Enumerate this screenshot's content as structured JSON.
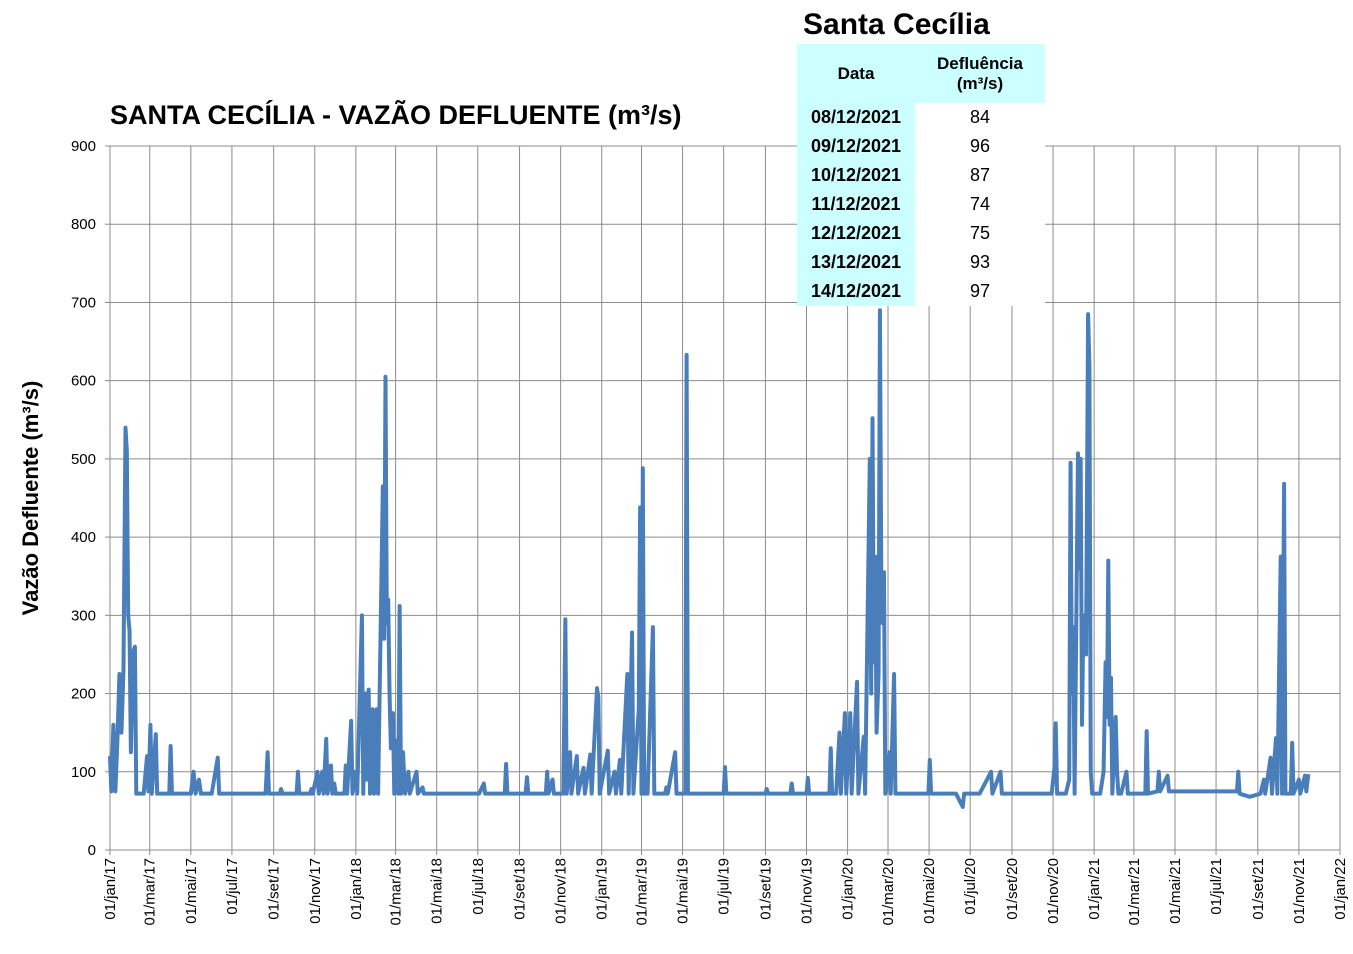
{
  "chart_data": {
    "type": "line",
    "title": "SANTA CECÍLIA - VAZÃO DEFLUENTE (m³/s)",
    "y_label": "Vazão Defluente (m³/s)",
    "color": "#4a7ebb",
    "grid": true,
    "xlim": [
      "2017-01-01",
      "2022-01-01"
    ],
    "ylim": [
      0,
      900
    ],
    "yticks": [
      0,
      100,
      200,
      300,
      400,
      500,
      600,
      700,
      800,
      900
    ],
    "xticks": [
      {
        "value": "2017-01-01",
        "label": "01/jan/17"
      },
      {
        "value": "2017-03-01",
        "label": "01/mar/17"
      },
      {
        "value": "2017-05-01",
        "label": "01/mai/17"
      },
      {
        "value": "2017-07-01",
        "label": "01/jul/17"
      },
      {
        "value": "2017-09-01",
        "label": "01/set/17"
      },
      {
        "value": "2017-11-01",
        "label": "01/nov/17"
      },
      {
        "value": "2018-01-01",
        "label": "01/jan/18"
      },
      {
        "value": "2018-03-01",
        "label": "01/mar/18"
      },
      {
        "value": "2018-05-01",
        "label": "01/mai/18"
      },
      {
        "value": "2018-07-01",
        "label": "01/jul/18"
      },
      {
        "value": "2018-09-01",
        "label": "01/set/18"
      },
      {
        "value": "2018-11-01",
        "label": "01/nov/18"
      },
      {
        "value": "2019-01-01",
        "label": "01/jan/19"
      },
      {
        "value": "2019-03-01",
        "label": "01/mar/19"
      },
      {
        "value": "2019-05-01",
        "label": "01/mai/19"
      },
      {
        "value": "2019-07-01",
        "label": "01/jul/19"
      },
      {
        "value": "2019-09-01",
        "label": "01/set/19"
      },
      {
        "value": "2019-11-01",
        "label": "01/nov/19"
      },
      {
        "value": "2020-01-01",
        "label": "01/jan/20"
      },
      {
        "value": "2020-03-01",
        "label": "01/mar/20"
      },
      {
        "value": "2020-05-01",
        "label": "01/mai/20"
      },
      {
        "value": "2020-07-01",
        "label": "01/jul/20"
      },
      {
        "value": "2020-09-01",
        "label": "01/set/20"
      },
      {
        "value": "2020-11-01",
        "label": "01/nov/20"
      },
      {
        "value": "2021-01-01",
        "label": "01/jan/21"
      },
      {
        "value": "2021-03-01",
        "label": "01/mar/21"
      },
      {
        "value": "2021-05-01",
        "label": "01/mai/21"
      },
      {
        "value": "2021-07-01",
        "label": "01/jul/21"
      },
      {
        "value": "2021-09-01",
        "label": "01/set/21"
      },
      {
        "value": "2021-11-01",
        "label": "01/nov/21"
      },
      {
        "value": "2022-01-01",
        "label": "01/jan/22"
      }
    ],
    "x": [
      "2017-01-01",
      "2017-01-03",
      "2017-01-06",
      "2017-01-09",
      "2017-01-12",
      "2017-01-15",
      "2017-01-18",
      "2017-01-21",
      "2017-01-24",
      "2017-01-26",
      "2017-01-28",
      "2017-01-30",
      "2017-02-01",
      "2017-02-03",
      "2017-02-05",
      "2017-02-07",
      "2017-02-09",
      "2017-02-20",
      "2017-02-25",
      "2017-02-27",
      "2017-03-02",
      "2017-03-04",
      "2017-03-10",
      "2017-03-12",
      "2017-03-30",
      "2017-04-01",
      "2017-04-03",
      "2017-05-01",
      "2017-05-05",
      "2017-05-08",
      "2017-05-13",
      "2017-05-16",
      "2017-06-01",
      "2017-06-10",
      "2017-06-12",
      "2017-08-20",
      "2017-08-23",
      "2017-08-25",
      "2017-09-10",
      "2017-09-12",
      "2017-09-14",
      "2017-10-05",
      "2017-10-07",
      "2017-10-09",
      "2017-10-25",
      "2017-10-27",
      "2017-10-29",
      "2017-11-05",
      "2017-11-07",
      "2017-11-12",
      "2017-11-14",
      "2017-11-18",
      "2017-11-20",
      "2017-11-25",
      "2017-11-27",
      "2017-11-30",
      "2017-12-02",
      "2017-12-15",
      "2017-12-17",
      "2017-12-19",
      "2017-12-25",
      "2017-12-27",
      "2017-12-30",
      "2018-01-03",
      "2018-01-10",
      "2018-01-12",
      "2018-01-15",
      "2018-01-17",
      "2018-01-20",
      "2018-01-22",
      "2018-01-26",
      "2018-01-28",
      "2018-02-01",
      "2018-02-03",
      "2018-02-08",
      "2018-02-10",
      "2018-02-12",
      "2018-02-14",
      "2018-02-16",
      "2018-02-18",
      "2018-02-20",
      "2018-02-22",
      "2018-02-25",
      "2018-02-27",
      "2018-03-03",
      "2018-03-05",
      "2018-03-07",
      "2018-03-09",
      "2018-03-12",
      "2018-03-15",
      "2018-03-20",
      "2018-03-22",
      "2018-04-01",
      "2018-04-03",
      "2018-04-10",
      "2018-04-12",
      "2018-06-01",
      "2018-07-03",
      "2018-07-10",
      "2018-07-12",
      "2018-08-10",
      "2018-08-12",
      "2018-08-14",
      "2018-09-10",
      "2018-09-12",
      "2018-09-14",
      "2018-10-10",
      "2018-10-12",
      "2018-10-14",
      "2018-10-20",
      "2018-10-22",
      "2018-11-05",
      "2018-11-08",
      "2018-11-10",
      "2018-11-15",
      "2018-11-17",
      "2018-11-25",
      "2018-11-27",
      "2018-12-05",
      "2018-12-07",
      "2018-12-15",
      "2018-12-17",
      "2018-12-25",
      "2018-12-27",
      "2018-12-29",
      "2019-01-10",
      "2019-01-12",
      "2019-01-20",
      "2019-01-22",
      "2019-01-28",
      "2019-01-30",
      "2019-02-08",
      "2019-02-10",
      "2019-02-15",
      "2019-02-17",
      "2019-02-25",
      "2019-02-27",
      "2019-03-01",
      "2019-03-03",
      "2019-03-05",
      "2019-03-10",
      "2019-03-18",
      "2019-03-20",
      "2019-04-05",
      "2019-04-07",
      "2019-04-09",
      "2019-04-20",
      "2019-04-22",
      "2019-05-05",
      "2019-05-07",
      "2019-05-09",
      "2019-07-01",
      "2019-07-03",
      "2019-07-05",
      "2019-09-01",
      "2019-09-03",
      "2019-09-05",
      "2019-10-08",
      "2019-10-10",
      "2019-10-12",
      "2019-11-01",
      "2019-11-03",
      "2019-11-05",
      "2019-12-05",
      "2019-12-07",
      "2019-12-09",
      "2019-12-15",
      "2019-12-20",
      "2019-12-22",
      "2019-12-28",
      "2019-12-30",
      "2020-01-05",
      "2020-01-07",
      "2020-01-15",
      "2020-01-17",
      "2020-01-25",
      "2020-01-27",
      "2020-02-03",
      "2020-02-05",
      "2020-02-07",
      "2020-02-09",
      "2020-02-11",
      "2020-02-13",
      "2020-02-16",
      "2020-02-18",
      "2020-02-20",
      "2020-02-22",
      "2020-02-24",
      "2020-02-26",
      "2020-03-03",
      "2020-03-05",
      "2020-03-10",
      "2020-03-12",
      "2020-04-30",
      "2020-05-02",
      "2020-05-04",
      "2020-06-10",
      "2020-06-20",
      "2020-06-22",
      "2020-07-15",
      "2020-08-01",
      "2020-08-03",
      "2020-08-15",
      "2020-08-17",
      "2020-10-30",
      "2020-11-03",
      "2020-11-05",
      "2020-11-07",
      "2020-11-20",
      "2020-11-25",
      "2020-11-27",
      "2020-11-29",
      "2020-12-01",
      "2020-12-03",
      "2020-12-08",
      "2020-12-10",
      "2020-12-12",
      "2020-12-14",
      "2020-12-16",
      "2020-12-20",
      "2020-12-23",
      "2020-12-25",
      "2020-12-27",
      "2020-12-29",
      "2021-01-10",
      "2021-01-15",
      "2021-01-18",
      "2021-01-20",
      "2021-01-22",
      "2021-01-24",
      "2021-01-26",
      "2021-01-28",
      "2021-02-02",
      "2021-02-04",
      "2021-02-06",
      "2021-02-10",
      "2021-02-18",
      "2021-02-20",
      "2021-03-18",
      "2021-03-20",
      "2021-03-22",
      "2021-04-05",
      "2021-04-07",
      "2021-04-09",
      "2021-04-20",
      "2021-04-22",
      "2021-08-01",
      "2021-08-03",
      "2021-08-05",
      "2021-08-20",
      "2021-09-05",
      "2021-09-10",
      "2021-09-12",
      "2021-09-20",
      "2021-09-22",
      "2021-09-28",
      "2021-09-30",
      "2021-10-05",
      "2021-10-07",
      "2021-10-10",
      "2021-10-12",
      "2021-10-20",
      "2021-10-22",
      "2021-10-24",
      "2021-11-01",
      "2021-11-03",
      "2021-11-10",
      "2021-11-12",
      "2021-11-15"
    ],
    "values": [
      120,
      75,
      160,
      75,
      140,
      225,
      150,
      230,
      540,
      510,
      300,
      280,
      125,
      200,
      255,
      260,
      72,
      72,
      120,
      75,
      160,
      72,
      148,
      72,
      72,
      133,
      72,
      72,
      100,
      72,
      90,
      72,
      72,
      118,
      72,
      72,
      125,
      72,
      72,
      78,
      72,
      72,
      100,
      72,
      72,
      78,
      72,
      100,
      72,
      100,
      72,
      142,
      72,
      108,
      72,
      85,
      72,
      72,
      108,
      72,
      165,
      72,
      100,
      72,
      300,
      72,
      200,
      90,
      205,
      72,
      180,
      72,
      180,
      72,
      350,
      465,
      270,
      605,
      290,
      320,
      200,
      130,
      175,
      72,
      140,
      72,
      312,
      72,
      125,
      72,
      100,
      72,
      100,
      72,
      80,
      72,
      72,
      72,
      85,
      72,
      72,
      110,
      72,
      72,
      93,
      72,
      72,
      100,
      72,
      90,
      72,
      72,
      295,
      72,
      125,
      72,
      120,
      72,
      105,
      72,
      122,
      72,
      207,
      195,
      72,
      127,
      72,
      100,
      72,
      115,
      72,
      225,
      72,
      278,
      72,
      180,
      438,
      72,
      488,
      72,
      72,
      285,
      72,
      72,
      80,
      72,
      125,
      72,
      72,
      633,
      72,
      72,
      106,
      72,
      72,
      78,
      72,
      72,
      85,
      72,
      72,
      92,
      72,
      72,
      130,
      72,
      72,
      150,
      72,
      175,
      72,
      175,
      72,
      215,
      72,
      145,
      72,
      500,
      200,
      552,
      240,
      375,
      150,
      225,
      690,
      350,
      290,
      355,
      72,
      125,
      72,
      225,
      72,
      72,
      115,
      72,
      72,
      55,
      72,
      72,
      100,
      72,
      100,
      72,
      72,
      105,
      162,
      72,
      72,
      90,
      495,
      200,
      285,
      72,
      507,
      360,
      500,
      160,
      300,
      250,
      685,
      620,
      100,
      72,
      72,
      100,
      240,
      170,
      370,
      160,
      220,
      72,
      170,
      100,
      72,
      72,
      100,
      72,
      72,
      152,
      72,
      75,
      100,
      75,
      95,
      75,
      75,
      100,
      72,
      68,
      72,
      90,
      72,
      118,
      72,
      143,
      72,
      375,
      72,
      468,
      72,
      72,
      137,
      72,
      90,
      72,
      95,
      75,
      97
    ]
  },
  "table": {
    "title": "Santa Cecília",
    "header": [
      "Data",
      "Defluência",
      "(m³/s)"
    ],
    "rows": [
      [
        "08/12/2021",
        84
      ],
      [
        "09/12/2021",
        96
      ],
      [
        "10/12/2021",
        87
      ],
      [
        "11/12/2021",
        74
      ],
      [
        "12/12/2021",
        75
      ],
      [
        "13/12/2021",
        93
      ],
      [
        "14/12/2021",
        97
      ]
    ]
  }
}
